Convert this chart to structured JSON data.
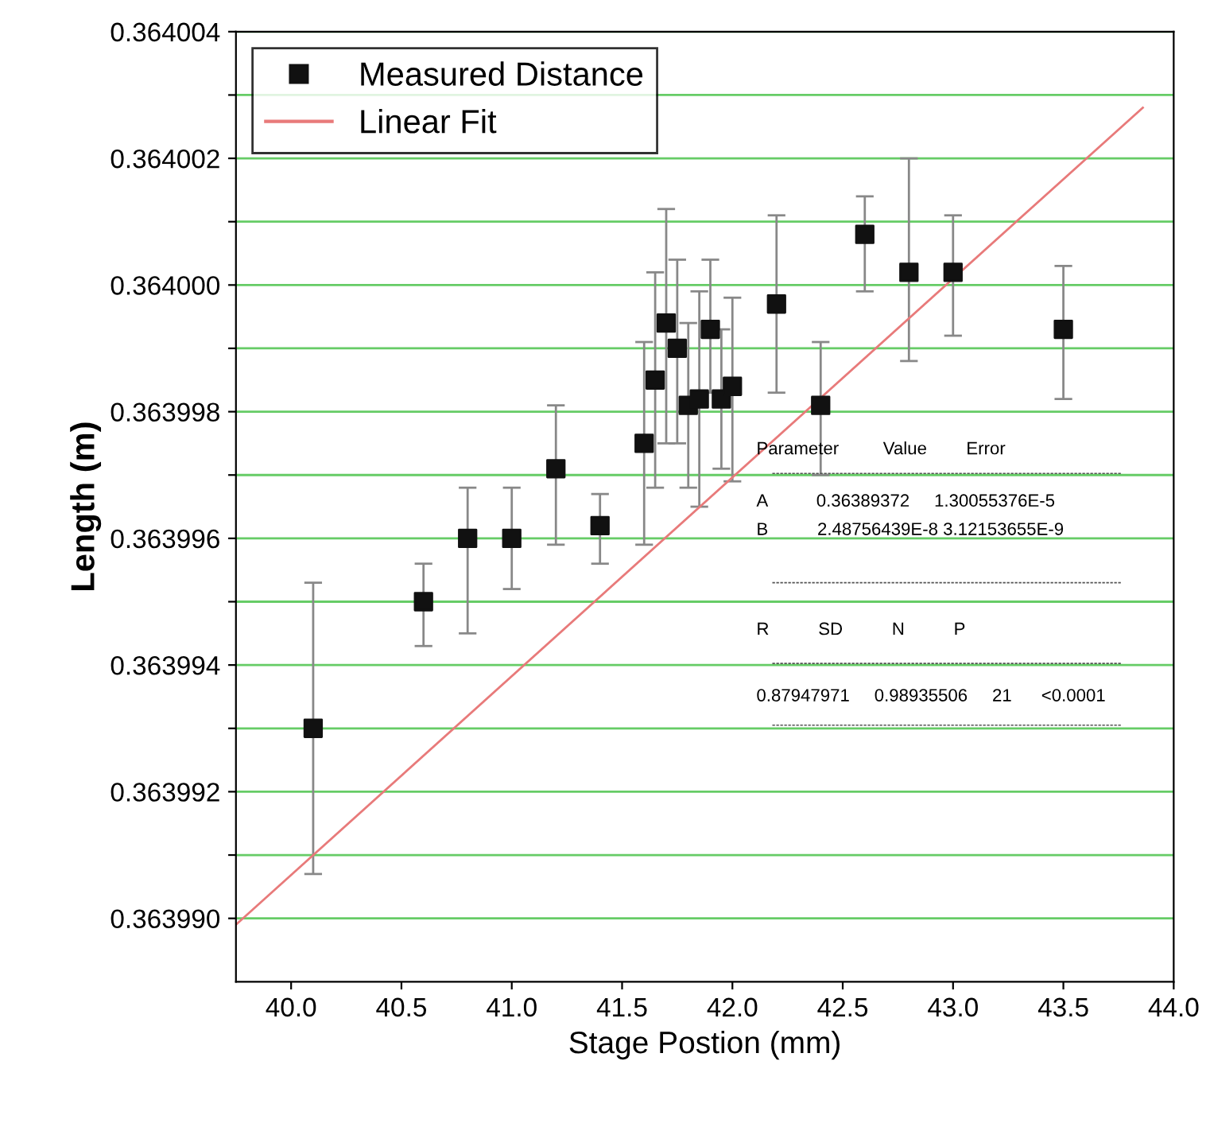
{
  "chart_data": {
    "type": "scatter",
    "xlabel": "Stage Postion (mm)",
    "ylabel": "Length (m)",
    "xlim": [
      39.75,
      44.0
    ],
    "xticks": [
      {
        "value": 40,
        "label": "40.0"
      },
      40.5,
      {
        "value": 41,
        "label": "41.0"
      },
      41.5,
      {
        "value": 42,
        "label": "42.0"
      },
      42.5,
      {
        "value": 43,
        "label": "43.0"
      },
      43.5,
      {
        "value": 44,
        "label": "44.0"
      }
    ],
    "ylim": [
      0.363989,
      0.364004
    ],
    "yticks": [
      {
        "value": 0.36399,
        "label": "0.363990"
      },
      {
        "value": 0.363991,
        "label": null
      },
      {
        "value": 0.363992,
        "label": "0.363992"
      },
      {
        "value": 0.363993,
        "label": null
      },
      {
        "value": 0.363994,
        "label": "0.363994"
      },
      {
        "value": 0.363995,
        "label": null
      },
      {
        "value": 0.363996,
        "label": "0.363996"
      },
      {
        "value": 0.363997,
        "label": null
      },
      {
        "value": 0.363998,
        "label": "0.363998"
      },
      {
        "value": 0.363999,
        "label": null
      },
      {
        "value": 0.364,
        "label": "0.364000"
      },
      {
        "value": 0.364001,
        "label": null
      },
      {
        "value": 0.364002,
        "label": "0.364002"
      },
      {
        "value": 0.364003,
        "label": null
      },
      {
        "value": 0.364004,
        "label": "0.364004"
      }
    ],
    "grid": "y",
    "legend": "top left",
    "series": [
      {
        "name": "Measured Distance",
        "type": "scatter",
        "color": "#111111",
        "marker": "square",
        "x": [
          40.1,
          40.6,
          40.8,
          41.0,
          41.2,
          41.4,
          41.6,
          41.65,
          41.7,
          41.75,
          41.8,
          41.85,
          41.9,
          41.95,
          42.0,
          42.2,
          42.4,
          42.6,
          42.8,
          43.0,
          43.5
        ],
        "values": [
          0.363993,
          0.363995,
          0.363996,
          0.363996,
          0.3639971,
          0.3639962,
          0.3639975,
          0.3639985,
          0.3639994,
          0.363999,
          0.3639981,
          0.3639982,
          0.3639993,
          0.3639982,
          0.3639984,
          0.3639997,
          0.3639981,
          0.3640008,
          0.3640002,
          0.3640002,
          0.3639993
        ],
        "errors": [
          [
            0.3639907,
            0.3639953
          ],
          [
            0.3639943,
            0.3639956
          ],
          [
            0.3639945,
            0.3639968
          ],
          [
            0.3639952,
            0.3639968
          ],
          [
            0.3639959,
            0.3639981
          ],
          [
            0.3639956,
            0.3639967
          ],
          [
            0.3639959,
            0.3639991
          ],
          [
            0.3639968,
            0.3640002
          ],
          [
            0.3639975,
            0.3640012
          ],
          [
            0.3639975,
            0.3640004
          ],
          [
            0.3639968,
            0.3639994
          ],
          [
            0.3639965,
            0.3639999
          ],
          [
            0.3639983,
            0.3640004
          ],
          [
            0.3639971,
            0.3639993
          ],
          [
            0.3639969,
            0.3639998
          ],
          [
            0.3639983,
            0.3640011
          ],
          [
            0.363997,
            0.3639991
          ],
          [
            0.3639999,
            0.3640014
          ],
          [
            0.3639988,
            0.364002
          ],
          [
            0.3639992,
            0.3640011
          ],
          [
            0.3639982,
            0.3640003
          ]
        ]
      },
      {
        "name": "Linear Fit",
        "type": "line",
        "color": "#e87a7a",
        "line_style": "solid",
        "x": [
          39.75,
          43.86
        ],
        "values": [
          0.3639899,
          0.3640028
        ]
      }
    ],
    "annotations": [
      "Parameter         Value        Error",
      "A          0.36389372     1.30055376E-5",
      "B          2.48756439E-8 3.12153655E-9",
      "R          SD          N          P",
      "0.87947971     0.98935506     21      <0.0001"
    ]
  }
}
